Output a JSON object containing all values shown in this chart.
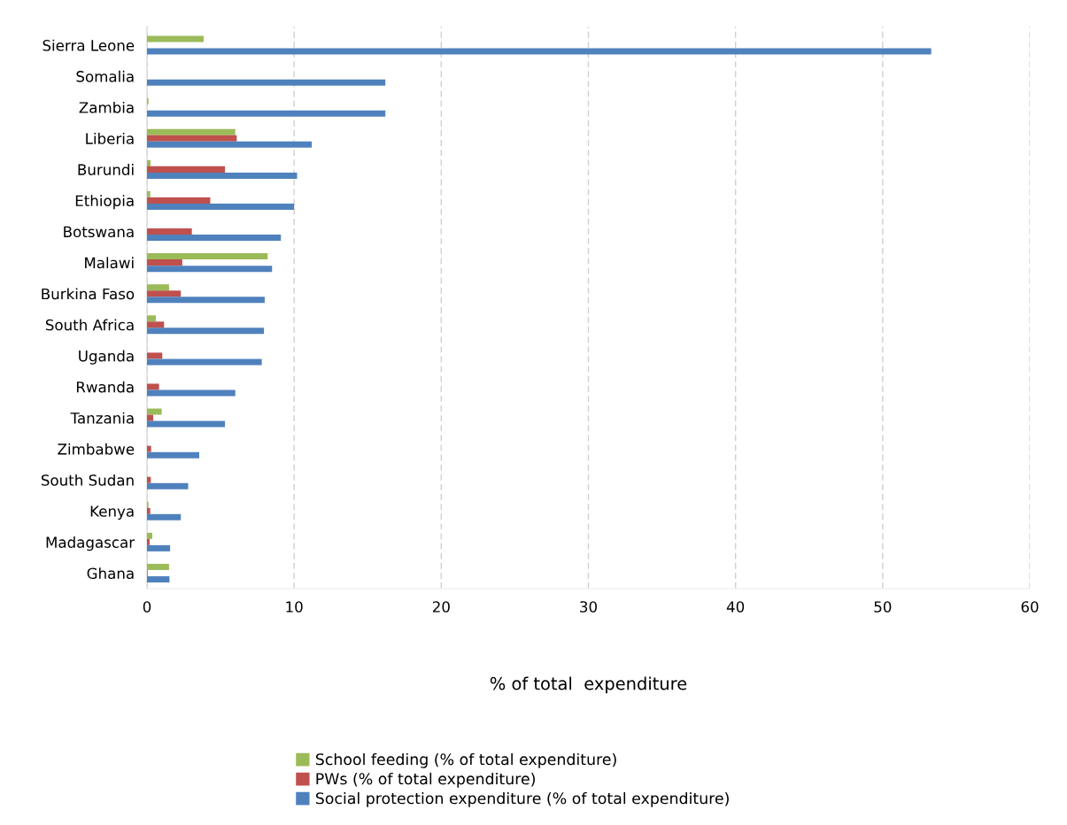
{
  "chart_data": {
    "type": "bar",
    "orientation": "horizontal",
    "xlabel": "% of total  expenditure",
    "categories": [
      "Sierra Leone",
      "Somalia",
      "Zambia",
      "Liberia",
      "Burundi",
      "Ethiopia",
      "Botswana",
      "Malawi",
      "Burkina Faso",
      "South Africa",
      "Uganda",
      "Rwanda",
      "Tanzania",
      "Zimbabwe",
      "South Sudan",
      "Kenya",
      "Madagascar",
      "Ghana"
    ],
    "series": [
      {
        "name": "School feeding (% of total expenditure)",
        "color": "#9bbb59",
        "values": [
          3.85,
          null,
          0.1,
          6.0,
          0.24,
          0.22,
          null,
          8.2,
          1.5,
          0.6,
          null,
          null,
          1.0,
          null,
          null,
          0.1,
          0.36,
          1.5
        ]
      },
      {
        "name": "PWs (% of total expenditure)",
        "color": "#c0504d",
        "values": [
          null,
          null,
          null,
          6.1,
          5.3,
          4.3,
          3.05,
          2.4,
          2.3,
          1.16,
          1.04,
          0.82,
          0.42,
          0.28,
          0.26,
          0.22,
          0.18,
          0.04
        ]
      },
      {
        "name": "Social protection expenditure (% of total expenditure)",
        "color": "#4f81bd",
        "values": [
          53.3,
          16.2,
          16.2,
          11.2,
          10.2,
          10.0,
          9.1,
          8.5,
          8.0,
          7.95,
          7.8,
          6.0,
          5.3,
          3.55,
          2.8,
          2.3,
          1.57,
          1.53
        ]
      }
    ],
    "xlim": [
      0,
      60
    ],
    "xticks": [
      0,
      10,
      20,
      30,
      40,
      50,
      60
    ],
    "grid": "x",
    "legend": "bottom"
  }
}
